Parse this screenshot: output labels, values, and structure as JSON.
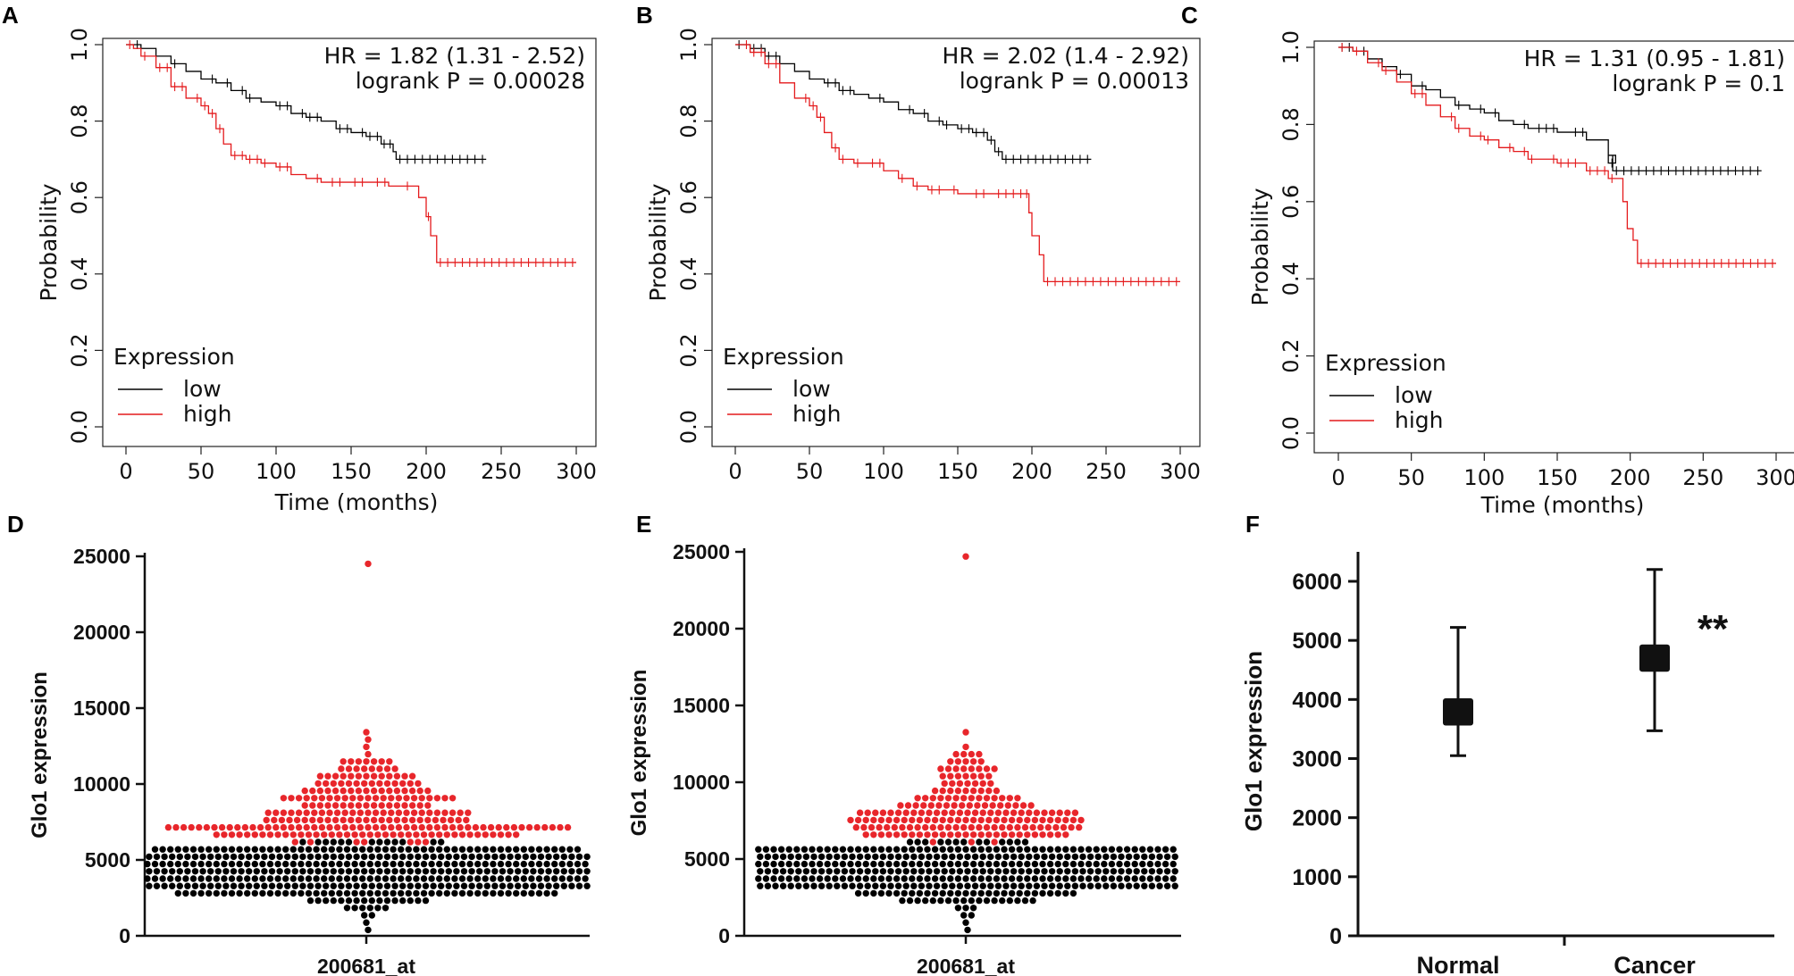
{
  "chart_data": [
    {
      "panel": "A",
      "type": "line",
      "subtype": "kaplan-meier",
      "annotations": [
        "HR = 1.82 (1.31 - 2.52)",
        "logrank P = 0.00028"
      ],
      "xlabel": "Time (months)",
      "ylabel": "Probability",
      "xlim": [
        0,
        300
      ],
      "ylim": [
        0,
        1
      ],
      "xticks": [
        "0",
        "50",
        "100",
        "150",
        "200",
        "250",
        "300"
      ],
      "yticks": [
        "0.0",
        "0.2",
        "0.4",
        "0.6",
        "0.8",
        "1.0"
      ],
      "legend_title": "Expression",
      "legend_position": "bottom-left",
      "series": [
        {
          "name": "low",
          "color": "#000000",
          "points": [
            [
              0,
              1.0
            ],
            [
              5,
              1.0
            ],
            [
              10,
              0.99
            ],
            [
              20,
              0.97
            ],
            [
              30,
              0.95
            ],
            [
              40,
              0.93
            ],
            [
              50,
              0.91
            ],
            [
              60,
              0.9
            ],
            [
              70,
              0.88
            ],
            [
              80,
              0.86
            ],
            [
              90,
              0.85
            ],
            [
              100,
              0.84
            ],
            [
              110,
              0.82
            ],
            [
              120,
              0.81
            ],
            [
              130,
              0.8
            ],
            [
              140,
              0.78
            ],
            [
              150,
              0.77
            ],
            [
              160,
              0.76
            ],
            [
              170,
              0.74
            ],
            [
              178,
              0.72
            ],
            [
              180,
              0.7
            ],
            [
              240,
              0.7
            ]
          ]
        },
        {
          "name": "high",
          "color": "#e41a1c",
          "points": [
            [
              0,
              1.0
            ],
            [
              5,
              0.99
            ],
            [
              10,
              0.97
            ],
            [
              20,
              0.94
            ],
            [
              30,
              0.89
            ],
            [
              40,
              0.86
            ],
            [
              50,
              0.84
            ],
            [
              55,
              0.82
            ],
            [
              60,
              0.78
            ],
            [
              65,
              0.74
            ],
            [
              70,
              0.71
            ],
            [
              80,
              0.7
            ],
            [
              90,
              0.69
            ],
            [
              100,
              0.68
            ],
            [
              110,
              0.66
            ],
            [
              120,
              0.65
            ],
            [
              130,
              0.64
            ],
            [
              150,
              0.64
            ],
            [
              175,
              0.63
            ],
            [
              190,
              0.63
            ],
            [
              195,
              0.6
            ],
            [
              200,
              0.55
            ],
            [
              203,
              0.5
            ],
            [
              207,
              0.43
            ],
            [
              300,
              0.43
            ]
          ]
        }
      ]
    },
    {
      "panel": "B",
      "type": "line",
      "subtype": "kaplan-meier",
      "annotations": [
        "HR = 2.02 (1.4 - 2.92)",
        "logrank P = 0.00013"
      ],
      "xlabel": "",
      "ylabel": "Probability",
      "xlim": [
        0,
        300
      ],
      "ylim": [
        0,
        1
      ],
      "xticks": [
        "0",
        "50",
        "100",
        "150",
        "200",
        "250",
        "300"
      ],
      "yticks": [
        "0.0",
        "0.2",
        "0.4",
        "0.6",
        "0.8",
        "1.0"
      ],
      "legend_title": "Expression",
      "legend_position": "bottom-left",
      "series": [
        {
          "name": "low",
          "color": "#000000",
          "points": [
            [
              0,
              1.0
            ],
            [
              10,
              0.99
            ],
            [
              20,
              0.97
            ],
            [
              30,
              0.95
            ],
            [
              40,
              0.93
            ],
            [
              50,
              0.91
            ],
            [
              60,
              0.9
            ],
            [
              70,
              0.88
            ],
            [
              80,
              0.87
            ],
            [
              90,
              0.86
            ],
            [
              100,
              0.85
            ],
            [
              110,
              0.83
            ],
            [
              120,
              0.82
            ],
            [
              130,
              0.8
            ],
            [
              140,
              0.79
            ],
            [
              150,
              0.78
            ],
            [
              160,
              0.77
            ],
            [
              170,
              0.75
            ],
            [
              175,
              0.72
            ],
            [
              180,
              0.7
            ],
            [
              240,
              0.7
            ]
          ]
        },
        {
          "name": "high",
          "color": "#e41a1c",
          "points": [
            [
              0,
              1.0
            ],
            [
              10,
              0.98
            ],
            [
              20,
              0.95
            ],
            [
              30,
              0.9
            ],
            [
              40,
              0.86
            ],
            [
              50,
              0.84
            ],
            [
              55,
              0.81
            ],
            [
              60,
              0.77
            ],
            [
              65,
              0.73
            ],
            [
              70,
              0.7
            ],
            [
              80,
              0.69
            ],
            [
              100,
              0.67
            ],
            [
              110,
              0.65
            ],
            [
              120,
              0.63
            ],
            [
              130,
              0.62
            ],
            [
              150,
              0.61
            ],
            [
              170,
              0.61
            ],
            [
              195,
              0.61
            ],
            [
              198,
              0.56
            ],
            [
              200,
              0.5
            ],
            [
              205,
              0.45
            ],
            [
              208,
              0.38
            ],
            [
              300,
              0.38
            ]
          ]
        }
      ]
    },
    {
      "panel": "C",
      "type": "line",
      "subtype": "kaplan-meier",
      "annotations": [
        "HR = 1.31 (0.95 - 1.81)",
        "logrank P = 0.1"
      ],
      "xlabel": "Time (months)",
      "ylabel": "Probability",
      "xlim": [
        0,
        300
      ],
      "ylim": [
        0,
        1
      ],
      "xticks": [
        "0",
        "50",
        "100",
        "150",
        "200",
        "250",
        "300"
      ],
      "yticks": [
        "0.0",
        "0.2",
        "0.4",
        "0.6",
        "0.8",
        "1.0"
      ],
      "legend_title": "Expression",
      "legend_position": "bottom-left",
      "series": [
        {
          "name": "low",
          "color": "#000000",
          "points": [
            [
              0,
              1.0
            ],
            [
              10,
              0.99
            ],
            [
              20,
              0.97
            ],
            [
              30,
              0.95
            ],
            [
              40,
              0.93
            ],
            [
              50,
              0.9
            ],
            [
              60,
              0.89
            ],
            [
              70,
              0.87
            ],
            [
              80,
              0.85
            ],
            [
              90,
              0.84
            ],
            [
              100,
              0.83
            ],
            [
              110,
              0.81
            ],
            [
              120,
              0.8
            ],
            [
              130,
              0.79
            ],
            [
              150,
              0.78
            ],
            [
              170,
              0.76
            ],
            [
              185,
              0.72
            ],
            [
              190,
              0.7
            ],
            [
              185,
              0.72
            ],
            [
              188,
              0.68
            ],
            [
              290,
              0.68
            ]
          ]
        },
        {
          "name": "high",
          "color": "#e41a1c",
          "points": [
            [
              0,
              1.0
            ],
            [
              10,
              0.99
            ],
            [
              20,
              0.96
            ],
            [
              30,
              0.94
            ],
            [
              40,
              0.91
            ],
            [
              50,
              0.88
            ],
            [
              60,
              0.85
            ],
            [
              70,
              0.82
            ],
            [
              80,
              0.79
            ],
            [
              90,
              0.77
            ],
            [
              100,
              0.76
            ],
            [
              110,
              0.74
            ],
            [
              120,
              0.73
            ],
            [
              130,
              0.71
            ],
            [
              150,
              0.7
            ],
            [
              170,
              0.68
            ],
            [
              185,
              0.66
            ],
            [
              195,
              0.6
            ],
            [
              198,
              0.53
            ],
            [
              202,
              0.5
            ],
            [
              205,
              0.44
            ],
            [
              300,
              0.44
            ]
          ]
        }
      ]
    },
    {
      "panel": "D",
      "type": "scatter",
      "subtype": "beeswarm",
      "xlabel": "200681_at",
      "ylabel": "Glo1 expression",
      "ylim": [
        0,
        25000
      ],
      "yticks": [
        "0",
        "5000",
        "10000",
        "15000",
        "20000",
        "25000"
      ],
      "colors": {
        "low": "#000000",
        "high": "#e8262b"
      },
      "threshold": 6200,
      "point_count": 1000,
      "max_value": 24500,
      "min_value": 500
    },
    {
      "panel": "E",
      "type": "scatter",
      "subtype": "beeswarm",
      "xlabel": "200681_at",
      "ylabel": "Glo1 expression",
      "ylim": [
        0,
        25000
      ],
      "yticks": [
        "0",
        "5000",
        "10000",
        "15000",
        "20000",
        "25000"
      ],
      "colors": {
        "low": "#000000",
        "high": "#e8262b"
      },
      "threshold": 6200,
      "point_count": 880,
      "max_value": 24500,
      "min_value": 400
    },
    {
      "panel": "F",
      "type": "box",
      "categories": [
        "Normal",
        "Cancer"
      ],
      "ylabel": "Glo1 expression",
      "ylim": [
        0,
        6500
      ],
      "yticks": [
        "0",
        "1000",
        "2000",
        "3000",
        "4000",
        "5000",
        "6000"
      ],
      "annotation": "**",
      "series": [
        {
          "name": "Normal",
          "min": 3050,
          "q1": 3560,
          "q3": 4020,
          "max": 5220
        },
        {
          "name": "Cancer",
          "min": 3470,
          "q1": 4470,
          "q3": 4930,
          "max": 6200
        }
      ]
    }
  ],
  "panel_letters": [
    "A",
    "B",
    "C",
    "D",
    "E",
    "F"
  ]
}
